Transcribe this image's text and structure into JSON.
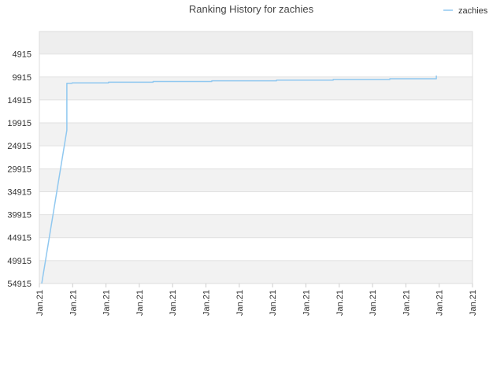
{
  "chart_data": {
    "type": "line",
    "title": "Ranking History for zachies",
    "xlabel": "",
    "ylabel": "",
    "y_inverted": true,
    "ylim": [
      54915,
      0
    ],
    "y_ticks": [
      4915,
      9915,
      14915,
      19915,
      24915,
      29915,
      34915,
      39915,
      44915,
      49915,
      54915
    ],
    "x_tick_labels": [
      "Jan.21",
      "Jan.21",
      "Jan.21",
      "Jan.21",
      "Jan.21",
      "Jan.21",
      "Jan.21",
      "Jan.21",
      "Jan.21",
      "Jan.21",
      "Jan.21",
      "Jan.21",
      "Jan.21",
      "Jan.21"
    ],
    "grid": true,
    "alternating_bands": true,
    "legend_position": "top-right",
    "colors": {
      "series": "#90c8f0",
      "band_dark": "#f2f2f2",
      "band_light": "#ffffff",
      "grid": "#e0e0e0"
    },
    "series": [
      {
        "name": "zachies",
        "x": [
          0.0,
          0.062,
          0.062,
          0.075,
          0.075,
          0.165,
          0.165,
          0.275,
          0.275,
          0.42,
          0.42,
          0.58,
          0.58,
          0.72,
          0.72,
          0.86,
          0.86,
          0.975,
          0.975
        ],
        "values": [
          54915,
          21500,
          11300,
          11300,
          11200,
          11200,
          11050,
          11050,
          10900,
          10900,
          10750,
          10750,
          10600,
          10600,
          10450,
          10450,
          10300,
          10300,
          9600
        ]
      }
    ]
  }
}
